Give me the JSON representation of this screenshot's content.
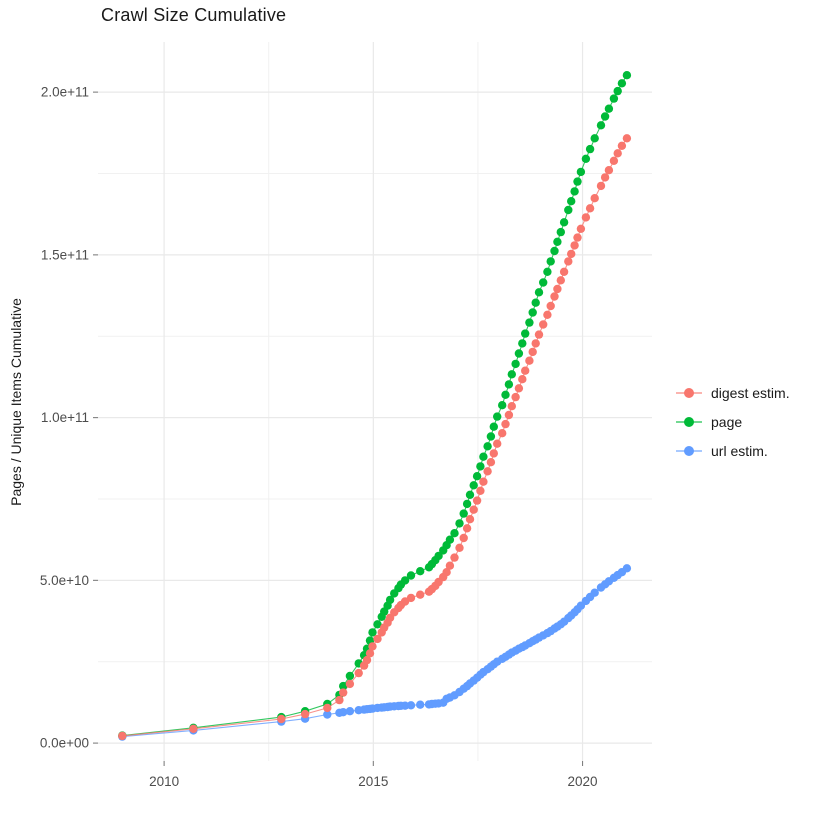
{
  "chart_data": {
    "type": "scatter",
    "title": "Crawl Size Cumulative",
    "xlabel": "",
    "ylabel": "Pages / Unique Items Cumulative",
    "value_unit_e9": "values are in billions (1e9) of pages / unique items",
    "xlim": [
      2008.42,
      2021.66
    ],
    "ylim_e9": [
      -5.5,
      215.4
    ],
    "grid": true,
    "legend_position": "right",
    "x_ticks": {
      "values": [
        2010,
        2015,
        2020
      ],
      "labels": [
        "2010",
        "2015",
        "2020"
      ],
      "minor": [
        2012.5,
        2017.5
      ]
    },
    "y_ticks": {
      "values_e9": [
        0,
        50,
        100,
        150,
        200
      ],
      "labels": [
        "0.0e+00",
        "5.0e+10",
        "1.0e+11",
        "1.5e+11",
        "2.0e+11"
      ],
      "minor_e9": [
        25,
        75,
        125,
        175
      ]
    },
    "series": [
      {
        "name": "digest estim.",
        "color": "#F8766D",
        "points": [
          [
            2009.0,
            2.2
          ],
          [
            2010.7,
            4.4
          ],
          [
            2012.8,
            7.4
          ],
          [
            2013.37,
            8.9
          ],
          [
            2013.9,
            10.8
          ],
          [
            2014.19,
            13.2
          ],
          [
            2014.28,
            15.5
          ],
          [
            2014.44,
            18.2
          ],
          [
            2014.65,
            21.5
          ],
          [
            2014.78,
            23.8
          ],
          [
            2014.85,
            25.5
          ],
          [
            2014.92,
            27.6
          ],
          [
            2014.98,
            29.7
          ],
          [
            2015.1,
            32.0
          ],
          [
            2015.2,
            34.0
          ],
          [
            2015.26,
            35.5
          ],
          [
            2015.34,
            37.0
          ],
          [
            2015.4,
            38.5
          ],
          [
            2015.5,
            40.2
          ],
          [
            2015.6,
            41.5
          ],
          [
            2015.66,
            42.4
          ],
          [
            2015.76,
            43.5
          ],
          [
            2015.9,
            44.6
          ],
          [
            2016.12,
            45.6
          ],
          [
            2016.33,
            46.5
          ],
          [
            2016.4,
            47.3
          ],
          [
            2016.48,
            48.3
          ],
          [
            2016.56,
            49.5
          ],
          [
            2016.67,
            51.0
          ],
          [
            2016.75,
            52.5
          ],
          [
            2016.83,
            54.5
          ],
          [
            2016.94,
            57.0
          ],
          [
            2017.06,
            60.0
          ],
          [
            2017.16,
            63.0
          ],
          [
            2017.24,
            66.0
          ],
          [
            2017.31,
            68.8
          ],
          [
            2017.4,
            71.7
          ],
          [
            2017.48,
            74.5
          ],
          [
            2017.56,
            77.5
          ],
          [
            2017.63,
            80.3
          ],
          [
            2017.73,
            83.5
          ],
          [
            2017.81,
            86.3
          ],
          [
            2017.88,
            89.0
          ],
          [
            2017.96,
            92.0
          ],
          [
            2018.08,
            95.2
          ],
          [
            2018.16,
            98.0
          ],
          [
            2018.24,
            100.8
          ],
          [
            2018.31,
            103.5
          ],
          [
            2018.4,
            106.3
          ],
          [
            2018.48,
            109.0
          ],
          [
            2018.56,
            111.8
          ],
          [
            2018.63,
            114.4
          ],
          [
            2018.73,
            117.5
          ],
          [
            2018.81,
            120.2
          ],
          [
            2018.88,
            122.8
          ],
          [
            2018.96,
            125.5
          ],
          [
            2019.06,
            128.6
          ],
          [
            2019.16,
            131.6
          ],
          [
            2019.24,
            134.3
          ],
          [
            2019.33,
            137.2
          ],
          [
            2019.4,
            139.5
          ],
          [
            2019.48,
            142.2
          ],
          [
            2019.56,
            144.8
          ],
          [
            2019.66,
            148.0
          ],
          [
            2019.73,
            150.3
          ],
          [
            2019.81,
            152.9
          ],
          [
            2019.88,
            155.3
          ],
          [
            2019.96,
            158.0
          ],
          [
            2020.08,
            161.5
          ],
          [
            2020.18,
            164.3
          ],
          [
            2020.29,
            167.4
          ],
          [
            2020.44,
            171.2
          ],
          [
            2020.54,
            173.8
          ],
          [
            2020.63,
            176.0
          ],
          [
            2020.75,
            178.9
          ],
          [
            2020.84,
            181.2
          ],
          [
            2020.94,
            183.5
          ],
          [
            2021.06,
            185.8
          ]
        ]
      },
      {
        "name": "page",
        "color": "#00BA38",
        "points": [
          [
            2009.0,
            2.3
          ],
          [
            2010.7,
            4.7
          ],
          [
            2012.8,
            8.0
          ],
          [
            2013.37,
            9.8
          ],
          [
            2013.9,
            12.0
          ],
          [
            2014.19,
            14.8
          ],
          [
            2014.28,
            17.5
          ],
          [
            2014.44,
            20.6
          ],
          [
            2014.65,
            24.5
          ],
          [
            2014.78,
            27.0
          ],
          [
            2014.85,
            29.0
          ],
          [
            2014.92,
            31.5
          ],
          [
            2014.98,
            34.0
          ],
          [
            2015.1,
            36.5
          ],
          [
            2015.2,
            38.8
          ],
          [
            2015.26,
            40.4
          ],
          [
            2015.34,
            42.2
          ],
          [
            2015.4,
            44.0
          ],
          [
            2015.5,
            46.0
          ],
          [
            2015.6,
            47.6
          ],
          [
            2015.66,
            48.7
          ],
          [
            2015.76,
            50.0
          ],
          [
            2015.9,
            51.5
          ],
          [
            2016.12,
            52.8
          ],
          [
            2016.33,
            54.0
          ],
          [
            2016.4,
            55.0
          ],
          [
            2016.48,
            56.2
          ],
          [
            2016.56,
            57.5
          ],
          [
            2016.67,
            59.2
          ],
          [
            2016.75,
            60.8
          ],
          [
            2016.83,
            62.5
          ],
          [
            2016.94,
            64.5
          ],
          [
            2017.06,
            67.5
          ],
          [
            2017.16,
            70.5
          ],
          [
            2017.24,
            73.5
          ],
          [
            2017.31,
            76.3
          ],
          [
            2017.4,
            79.2
          ],
          [
            2017.48,
            82.0
          ],
          [
            2017.56,
            85.0
          ],
          [
            2017.63,
            88.0
          ],
          [
            2017.73,
            91.2
          ],
          [
            2017.81,
            94.2
          ],
          [
            2017.88,
            97.2
          ],
          [
            2017.96,
            100.3
          ],
          [
            2018.08,
            103.8
          ],
          [
            2018.16,
            107.0
          ],
          [
            2018.24,
            110.2
          ],
          [
            2018.31,
            113.3
          ],
          [
            2018.4,
            116.5
          ],
          [
            2018.48,
            119.7
          ],
          [
            2018.56,
            122.8
          ],
          [
            2018.63,
            125.8
          ],
          [
            2018.73,
            129.2
          ],
          [
            2018.81,
            132.3
          ],
          [
            2018.88,
            135.3
          ],
          [
            2018.96,
            138.5
          ],
          [
            2019.06,
            141.5
          ],
          [
            2019.16,
            144.8
          ],
          [
            2019.24,
            148.0
          ],
          [
            2019.33,
            151.2
          ],
          [
            2019.4,
            154.0
          ],
          [
            2019.48,
            157.0
          ],
          [
            2019.56,
            160.0
          ],
          [
            2019.66,
            163.8
          ],
          [
            2019.73,
            166.5
          ],
          [
            2019.81,
            169.5
          ],
          [
            2019.88,
            172.5
          ],
          [
            2019.96,
            175.5
          ],
          [
            2020.08,
            179.5
          ],
          [
            2020.18,
            182.5
          ],
          [
            2020.29,
            185.8
          ],
          [
            2020.44,
            189.8
          ],
          [
            2020.54,
            192.5
          ],
          [
            2020.63,
            194.9
          ],
          [
            2020.75,
            198.0
          ],
          [
            2020.84,
            200.3
          ],
          [
            2020.94,
            202.7
          ],
          [
            2021.06,
            205.2
          ]
        ]
      },
      {
        "name": "url estim.",
        "color": "#619CFF",
        "points": [
          [
            2009.0,
            2.0
          ],
          [
            2010.7,
            3.9
          ],
          [
            2012.8,
            6.6
          ],
          [
            2013.37,
            7.5
          ],
          [
            2013.9,
            8.8
          ],
          [
            2014.19,
            9.3
          ],
          [
            2014.28,
            9.5
          ],
          [
            2014.44,
            9.8
          ],
          [
            2014.65,
            10.1
          ],
          [
            2014.78,
            10.3
          ],
          [
            2014.85,
            10.4
          ],
          [
            2014.92,
            10.5
          ],
          [
            2014.98,
            10.6
          ],
          [
            2015.1,
            10.8
          ],
          [
            2015.2,
            10.9
          ],
          [
            2015.26,
            11.0
          ],
          [
            2015.34,
            11.1
          ],
          [
            2015.4,
            11.2
          ],
          [
            2015.5,
            11.3
          ],
          [
            2015.6,
            11.4
          ],
          [
            2015.66,
            11.45
          ],
          [
            2015.76,
            11.5
          ],
          [
            2015.9,
            11.6
          ],
          [
            2016.12,
            11.8
          ],
          [
            2016.33,
            11.9
          ],
          [
            2016.4,
            12.0
          ],
          [
            2016.48,
            12.1
          ],
          [
            2016.56,
            12.2
          ],
          [
            2016.67,
            12.4
          ],
          [
            2016.75,
            13.6
          ],
          [
            2016.83,
            14.0
          ],
          [
            2016.94,
            14.7
          ],
          [
            2017.06,
            15.7
          ],
          [
            2017.16,
            16.7
          ],
          [
            2017.24,
            17.5
          ],
          [
            2017.31,
            18.3
          ],
          [
            2017.4,
            19.2
          ],
          [
            2017.48,
            20.1
          ],
          [
            2017.56,
            21.0
          ],
          [
            2017.63,
            21.8
          ],
          [
            2017.73,
            22.7
          ],
          [
            2017.81,
            23.5
          ],
          [
            2017.88,
            24.2
          ],
          [
            2017.96,
            25.0
          ],
          [
            2018.08,
            25.9
          ],
          [
            2018.16,
            26.5
          ],
          [
            2018.24,
            27.2
          ],
          [
            2018.31,
            27.8
          ],
          [
            2018.4,
            28.4
          ],
          [
            2018.48,
            29.0
          ],
          [
            2018.56,
            29.5
          ],
          [
            2018.63,
            30.0
          ],
          [
            2018.73,
            30.7
          ],
          [
            2018.81,
            31.3
          ],
          [
            2018.88,
            31.8
          ],
          [
            2018.96,
            32.4
          ],
          [
            2019.06,
            33.1
          ],
          [
            2019.16,
            33.8
          ],
          [
            2019.24,
            34.4
          ],
          [
            2019.33,
            35.2
          ],
          [
            2019.4,
            35.8
          ],
          [
            2019.48,
            36.5
          ],
          [
            2019.56,
            37.3
          ],
          [
            2019.66,
            38.4
          ],
          [
            2019.73,
            39.2
          ],
          [
            2019.81,
            40.2
          ],
          [
            2019.88,
            41.1
          ],
          [
            2019.96,
            42.2
          ],
          [
            2020.08,
            43.7
          ],
          [
            2020.18,
            44.9
          ],
          [
            2020.29,
            46.2
          ],
          [
            2020.44,
            47.8
          ],
          [
            2020.54,
            48.8
          ],
          [
            2020.63,
            49.7
          ],
          [
            2020.75,
            50.8
          ],
          [
            2020.84,
            51.6
          ],
          [
            2020.94,
            52.5
          ],
          [
            2021.06,
            53.7
          ]
        ]
      }
    ],
    "draw_order_bottom_to_top": [
      "url estim.",
      "page",
      "digest estim."
    ]
  },
  "colors": {
    "background": "#FFFFFF",
    "grid_major": "#E9E9E9",
    "grid_minor": "#F1F1F1",
    "tick_mark": "#808080",
    "tick_label": "#4D4D4D",
    "text": "#1A1A1A"
  }
}
